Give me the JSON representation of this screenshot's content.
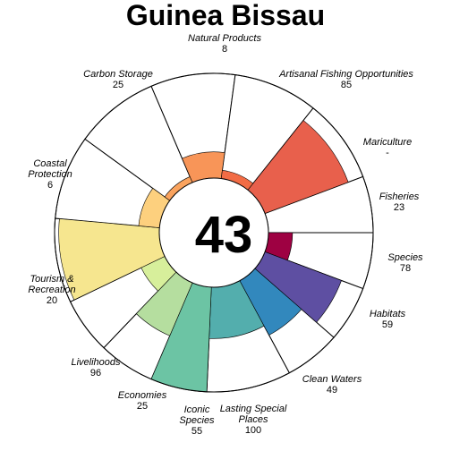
{
  "chart_data": {
    "type": "flower-plot",
    "title": "Guinea Bissau",
    "center_score": "43",
    "score_max": 100,
    "petals": [
      {
        "label": "Fisheries",
        "score": 23,
        "display": "23",
        "weight": 1,
        "color": "#9E0142"
      },
      {
        "label": "Species",
        "score": 78,
        "display": "78",
        "weight": 1,
        "color": "#5E4FA2"
      },
      {
        "label": "Habitats",
        "score": 59,
        "display": "59",
        "weight": 1,
        "color": "#3288BD"
      },
      {
        "label": "Clean Waters",
        "score": 49,
        "display": "49",
        "weight": 1.5,
        "color": "#53AEAD"
      },
      {
        "label": "Lasting Special Places",
        "score": 100,
        "display": "100",
        "weight": 1,
        "color": "#6CC4A4"
      },
      {
        "label": "Iconic Species",
        "score": 55,
        "display": "55",
        "weight": 1,
        "color": "#B5DE9F"
      },
      {
        "label": "Economies",
        "score": 25,
        "display": "25",
        "weight": 1,
        "color": "#D7EF9B"
      },
      {
        "label": "Livelihoods",
        "score": 96,
        "display": "96",
        "weight": 1.5,
        "color": "#F6E68F"
      },
      {
        "label": "Tourism & Recreation",
        "score": 20,
        "display": "20",
        "weight": 1.5,
        "color": "#FDD07E"
      },
      {
        "label": "Coastal Protection",
        "score": 6,
        "display": "6",
        "weight": 1.5,
        "color": "#FAA35E"
      },
      {
        "label": "Carbon Storage",
        "score": 25,
        "display": "25",
        "weight": 1.5,
        "color": "#F89558"
      },
      {
        "label": "Natural Products",
        "score": 8,
        "display": "8",
        "weight": 1.5,
        "color": "#F26C45"
      },
      {
        "label": "Artisanal Fishing Opportunities",
        "score": 85,
        "display": "85",
        "weight": 1.5,
        "color": "#E8604C"
      },
      {
        "label": "Mariculture",
        "score": 0,
        "display": "-",
        "weight": 1,
        "color": "#E8604C"
      }
    ]
  }
}
